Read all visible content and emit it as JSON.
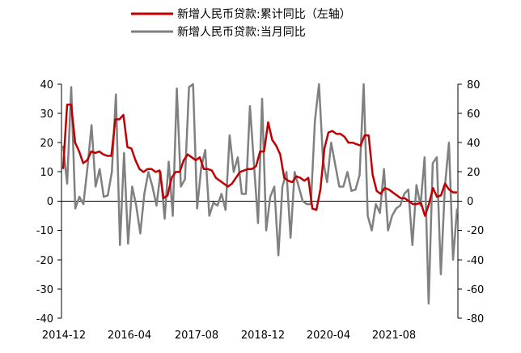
{
  "chart_data": {
    "type": "line",
    "legend_position": "top-center",
    "grid": false,
    "x_tick_labels": [
      "2014-12",
      "2016-04",
      "2017-08",
      "2018-12",
      "2020-04",
      "2021-08"
    ],
    "left_axis": {
      "range": [
        -40,
        40
      ],
      "ticks": [
        "40",
        "30",
        "20",
        "10",
        "0",
        "-10",
        "-20",
        "-30",
        "-40"
      ]
    },
    "right_axis": {
      "range": [
        -80,
        80
      ],
      "ticks": [
        "80",
        "60",
        "40",
        "20",
        "0",
        "-20",
        "-40",
        "-60",
        "-80"
      ]
    },
    "series": [
      {
        "name": "新增人民币贷款:累计同比（左轴）",
        "axis": "left",
        "color": "#c00000",
        "values": [
          11,
          33,
          33,
          20,
          17,
          13,
          14,
          17,
          16.5,
          17,
          16,
          15.5,
          15.5,
          28,
          28,
          29.5,
          18.5,
          18,
          14,
          11,
          10,
          11,
          11,
          10,
          10.5,
          1,
          2,
          8,
          10,
          10,
          14,
          16,
          15,
          14,
          15,
          11,
          11,
          10.5,
          8,
          7,
          6,
          5,
          6,
          8,
          10,
          10.5,
          11,
          11,
          12,
          17,
          17,
          27,
          21,
          19,
          16,
          8,
          7,
          6.5,
          8.5,
          8,
          7,
          8,
          -2.5,
          -3,
          4,
          18,
          23.5,
          24,
          23,
          23,
          22,
          20,
          20,
          19.5,
          19,
          22.5,
          22.5,
          9,
          3.5,
          2.5,
          4.5,
          4,
          3,
          2,
          1,
          1,
          0,
          -1,
          -1,
          -0.5,
          -5,
          -1,
          4.5,
          1.5,
          2,
          6,
          4,
          3,
          3
        ]
      },
      {
        "name": "新增人民币贷款:当月同比",
        "axis": "right",
        "color": "#808080",
        "values": [
          38,
          12,
          78,
          -5,
          3,
          -2,
          23,
          52,
          10,
          22,
          3,
          4,
          20,
          73,
          -30,
          33,
          -29,
          10,
          -3,
          -22,
          5,
          20,
          10,
          -3,
          20,
          -12,
          27,
          -10,
          77,
          10,
          15,
          78,
          80,
          -5,
          23,
          35,
          -10,
          -1,
          -3,
          5,
          -6,
          45,
          20,
          30,
          5,
          5,
          65,
          25,
          -15,
          70,
          -20,
          3,
          10,
          -37,
          10,
          20,
          -25,
          20,
          10,
          0,
          -2,
          -2,
          55,
          80,
          28,
          13,
          40,
          25,
          10,
          10,
          20,
          7,
          8,
          18,
          80,
          -10,
          -20,
          -2,
          -8,
          22,
          -20,
          -10,
          -5,
          -3,
          5,
          8,
          -30,
          11,
          -3,
          30,
          -70,
          26,
          30,
          -50,
          10,
          40,
          -40,
          -5
        ]
      }
    ]
  }
}
